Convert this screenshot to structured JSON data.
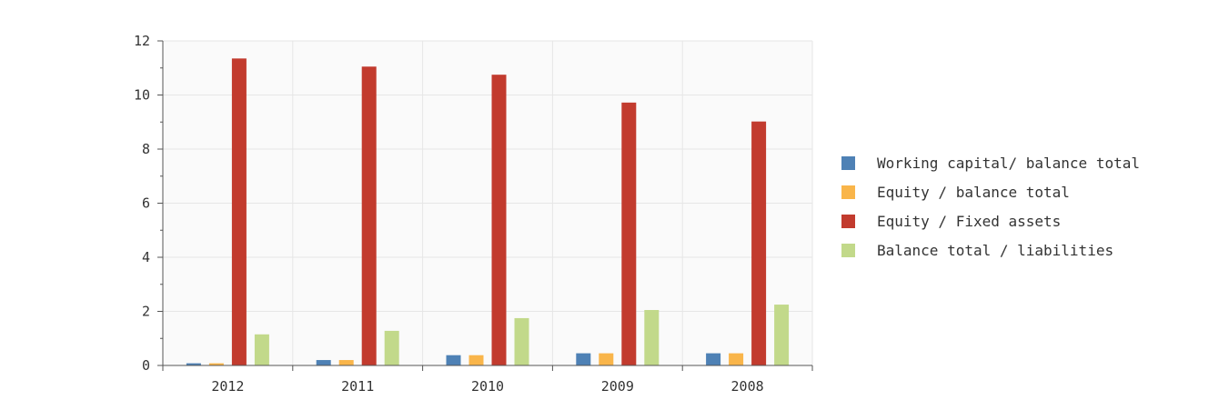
{
  "chart_data": {
    "type": "bar",
    "title": "",
    "xlabel": "",
    "ylabel": "",
    "ylim": [
      0,
      12
    ],
    "yticks": [
      0,
      2,
      4,
      6,
      8,
      10,
      12
    ],
    "ytick_labels": [
      "0",
      "2",
      "4",
      "6",
      "8",
      "10",
      "12"
    ],
    "grid": true,
    "legend_position": "right",
    "categories": [
      "2012",
      "2011",
      "2010",
      "2009",
      "2008"
    ],
    "series": [
      {
        "name": "Working capital/ balance total",
        "color": "#4e81b5",
        "values": [
          0.08,
          0.2,
          0.38,
          0.45,
          0.45
        ]
      },
      {
        "name": "Equity / balance total",
        "color": "#f9b54a",
        "values": [
          0.08,
          0.2,
          0.38,
          0.45,
          0.45
        ]
      },
      {
        "name": "Equity / Fixed assets",
        "color": "#c23b2e",
        "values": [
          11.35,
          11.05,
          10.75,
          9.72,
          9.02
        ]
      },
      {
        "name": "Balance total / liabilities",
        "color": "#c2d98a",
        "values": [
          1.15,
          1.28,
          1.75,
          2.05,
          2.25
        ]
      }
    ]
  }
}
